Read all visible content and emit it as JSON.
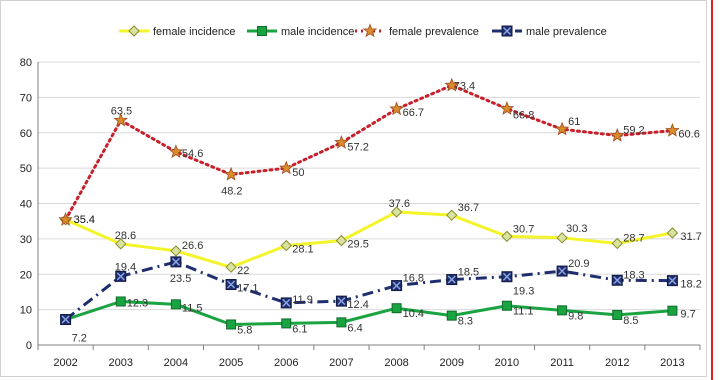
{
  "chart_data": {
    "type": "line",
    "title": "",
    "xlabel": "",
    "ylabel": "",
    "x": [
      "2002",
      "2003",
      "2004",
      "2005",
      "2006",
      "2007",
      "2008",
      "2009",
      "2010",
      "2011",
      "2012",
      "2013"
    ],
    "ylim": [
      0,
      80
    ],
    "yticks": [
      0,
      10,
      20,
      30,
      40,
      50,
      60,
      70,
      80
    ],
    "grid": true,
    "legend_position": "top",
    "series": [
      {
        "name": "female incidence",
        "color": "#f4f42a",
        "marker": "diamond",
        "line_style": "solid",
        "values": [
          35.4,
          28.6,
          26.6,
          22,
          28.1,
          29.5,
          37.6,
          36.7,
          30.7,
          30.3,
          28.7,
          31.7
        ],
        "labels": [
          "35.4",
          "28.6",
          "26.6",
          "22",
          "28.1",
          "29.5",
          "37.6",
          "36.7",
          "30.7",
          "30.3",
          "28.7",
          "31.7"
        ]
      },
      {
        "name": "male incidence",
        "color": "#1aa341",
        "marker": "square",
        "line_style": "solid",
        "values": [
          7.2,
          12.3,
          11.5,
          5.8,
          6.1,
          6.4,
          10.4,
          8.3,
          11.1,
          9.8,
          8.5,
          9.7
        ],
        "labels": [
          "7.2",
          "12.3",
          "11.5",
          "5.8",
          "6.1",
          "6.4",
          "10.4",
          "8.3",
          "11.1",
          "9.8",
          "8.5",
          "9.7"
        ]
      },
      {
        "name": "female prevalence",
        "color": "#c8202a",
        "marker": "star",
        "line_style": "dotted",
        "values": [
          35.4,
          63.5,
          54.6,
          48.2,
          50,
          57.2,
          66.7,
          73.4,
          66.8,
          61,
          59.2,
          60.6
        ],
        "labels": [
          "35.4",
          "63.5",
          "54.6",
          "48.2",
          "50",
          "57.2",
          "66.7",
          "73.4",
          "66.8",
          "61",
          "59.2",
          "60.6"
        ]
      },
      {
        "name": "male prevalence",
        "color": "#1f2f6e",
        "marker": "x-square",
        "line_style": "dashdot",
        "values": [
          7.2,
          19.4,
          23.5,
          17.1,
          11.9,
          12.4,
          16.8,
          18.5,
          19.3,
          20.9,
          18.3,
          18.2
        ],
        "labels": [
          "",
          "19.4",
          "23.5",
          "17.1",
          "11.9",
          "12.4",
          "16.8",
          "18.5",
          "19.3",
          "20.9",
          "18.3",
          "18.2"
        ]
      }
    ]
  }
}
